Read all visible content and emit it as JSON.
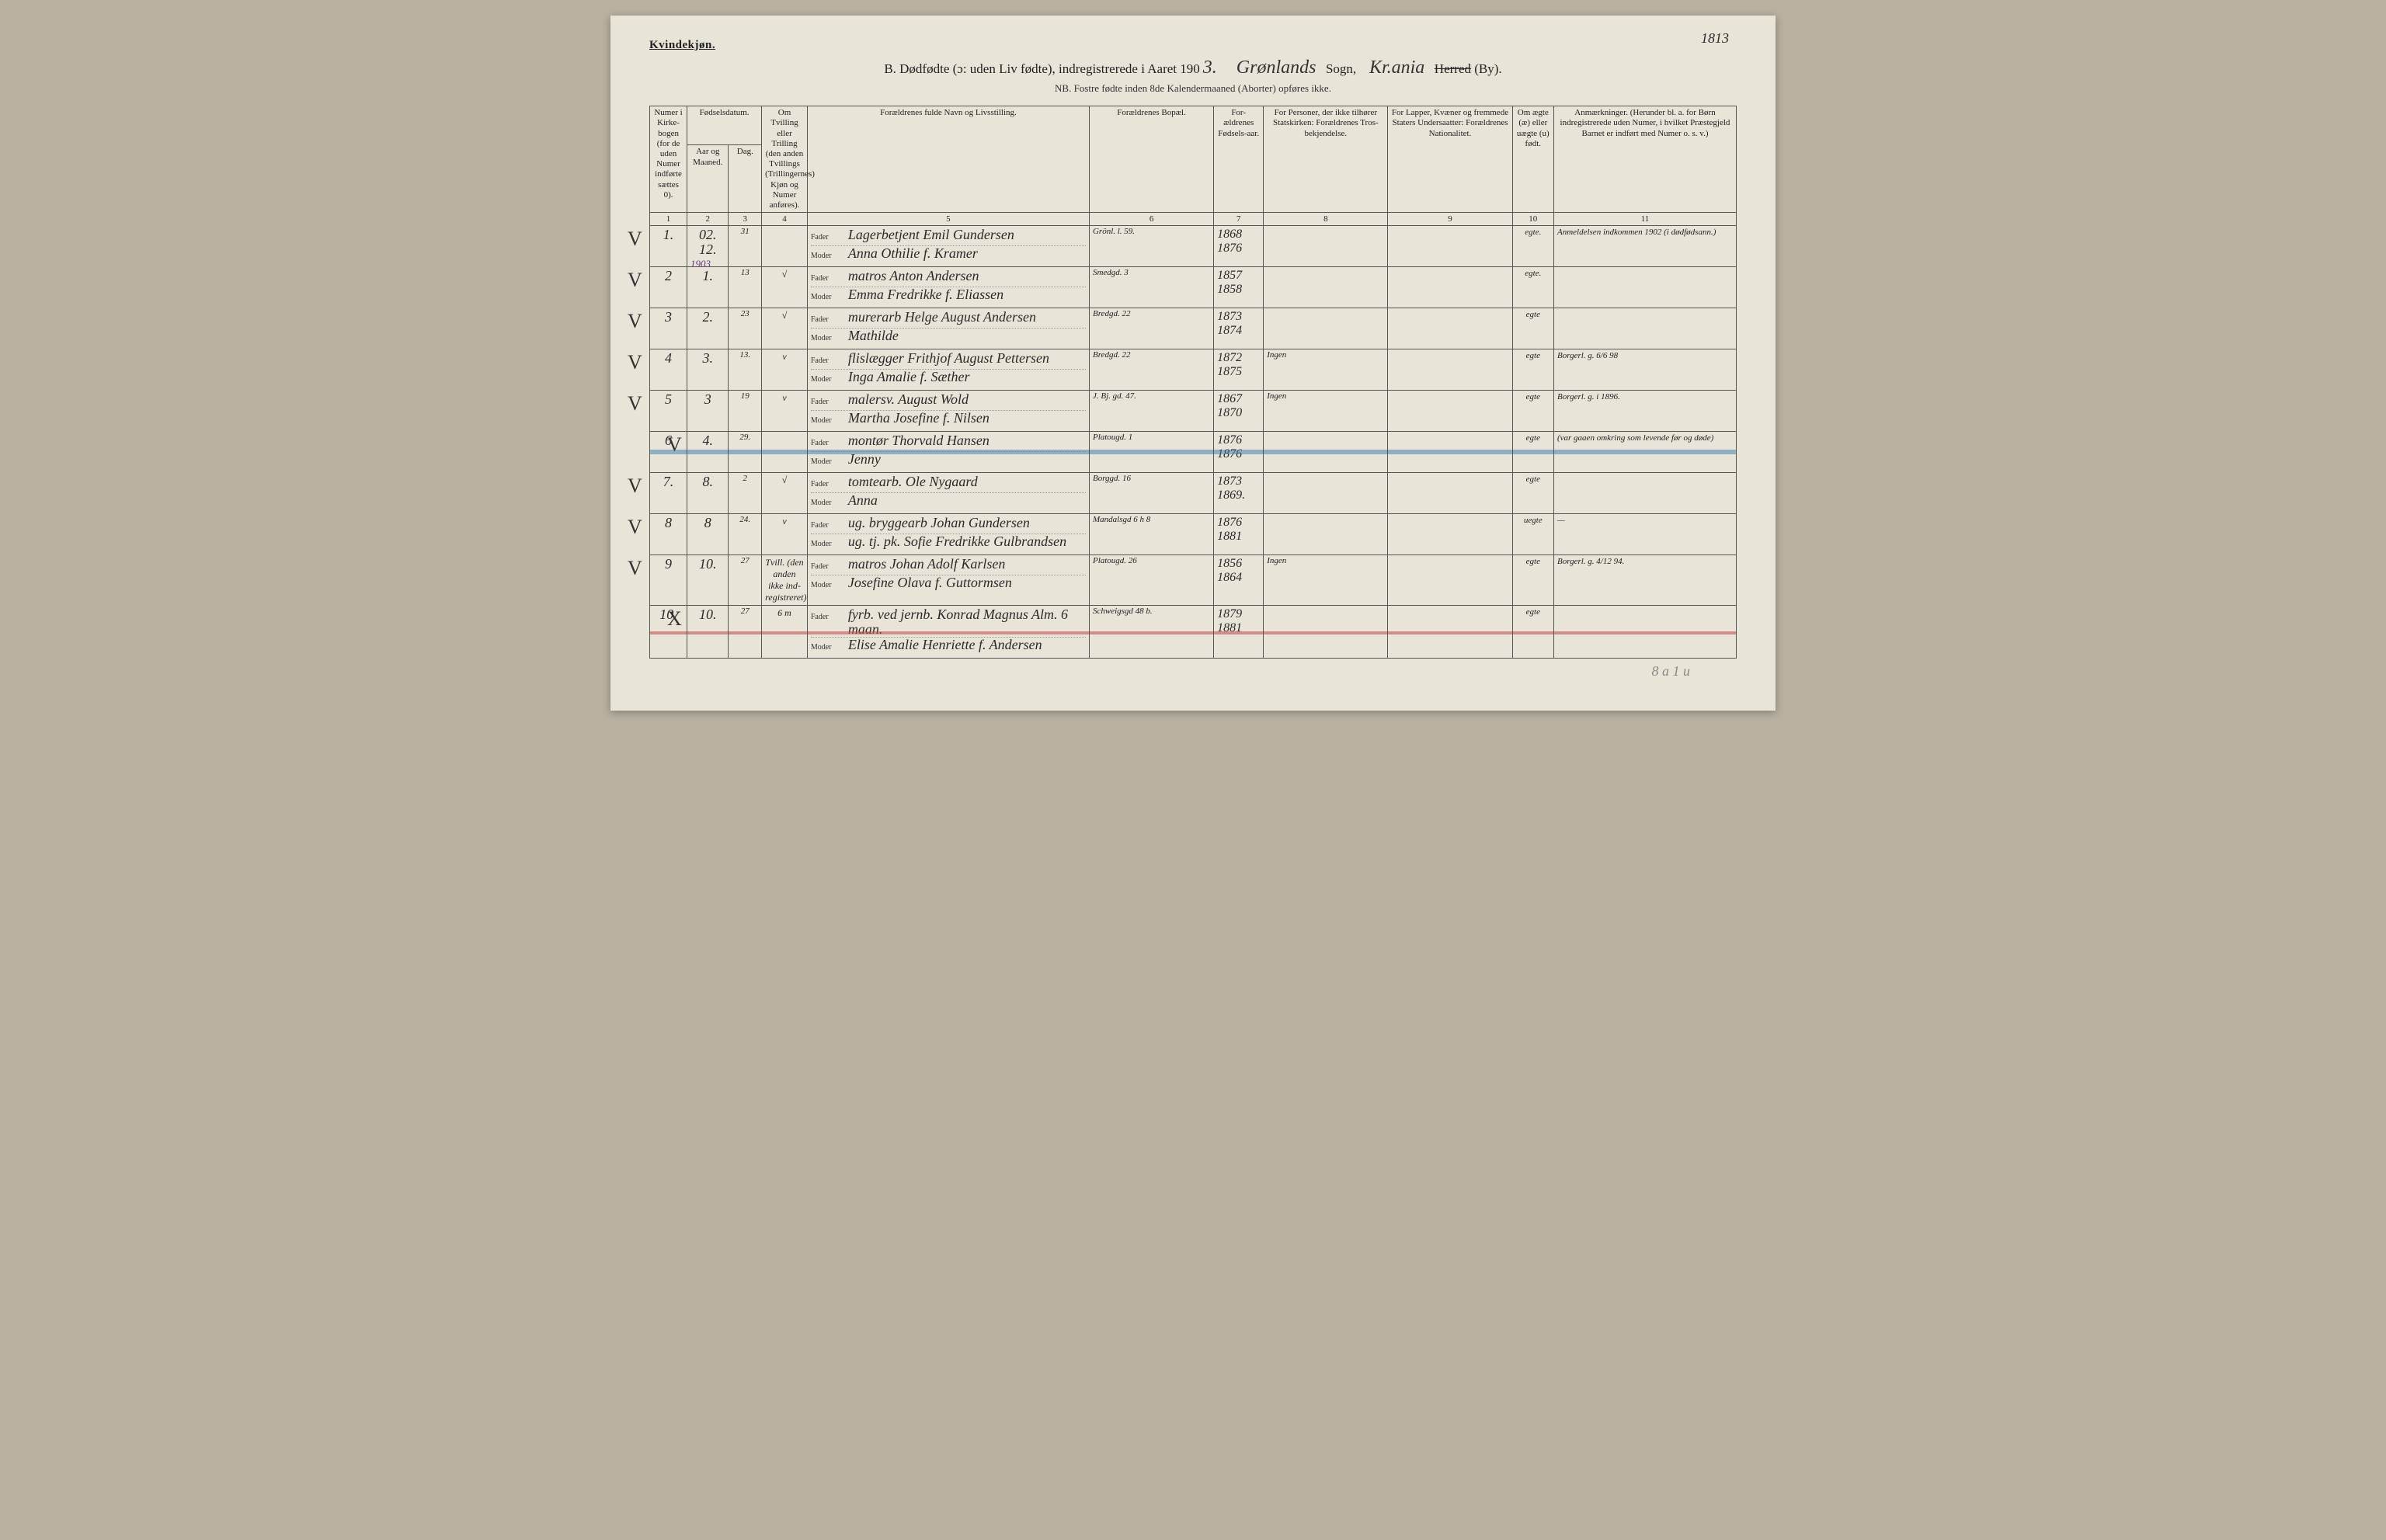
{
  "pageNumber": "1813",
  "genderLabel": "Kvindekjøn.",
  "titlePrefix": "B.  Dødfødte (ɔ: uden Liv fødte), indregistrerede i Aaret 190",
  "titleYearHand": "3.",
  "parishHand": "Grønlands",
  "parishLabel": "Sogn,",
  "districtHand": "Kr.ania",
  "districtStrike": "Herred",
  "districtSuffix": "(By).",
  "subtitle": "NB. Fostre fødte inden 8de Kalendermaaned (Aborter) opføres ikke.",
  "columns": {
    "c1": "Numer i Kirke-bogen (for de uden Numer indførte sættes 0).",
    "c2a": "Fødselsdatum.",
    "c2": "Aar og Maaned.",
    "c3": "Dag.",
    "c4": "Om Tvilling eller Trilling (den anden Tvillings (Trillingernes) Kjøn og Numer anføres).",
    "c5": "Forældrenes fulde Navn og Livsstilling.",
    "c6": "Forældrenes Bopæl.",
    "c7": "For-ældrenes Fødsels-aar.",
    "c8": "For Personer, der ikke tilhører Statskirken: Forældrenes Tros-bekjendelse.",
    "c9": "For Lapper, Kvæner og fremmede Staters Undersaatter: Forældrenes Nationalitet.",
    "c10": "Om ægte (æ) eller uægte (u) født.",
    "c11": "Anmærkninger. (Herunder bl. a. for Børn indregistrerede uden Numer, i hvilket Præstegjeld Barnet er indført med Numer o. s. v.)"
  },
  "colNums": [
    "1",
    "2",
    "3",
    "4",
    "5",
    "6",
    "7",
    "8",
    "9",
    "10",
    "11"
  ],
  "parentLabels": {
    "father": "Fader",
    "mother": "Moder"
  },
  "yearNote": "1903",
  "rows": [
    {
      "margin": "V",
      "num": "1.",
      "mon": "02. 12.",
      "day": "31",
      "twin": "",
      "father": "Lagerbetjent Emil Gundersen",
      "mother": "Anna Othilie f. Kramer",
      "addr": "Grönl. l. 59.",
      "yearF": "1868",
      "yearM": "1876",
      "faith": "",
      "nat": "",
      "legit": "egte.",
      "remark": "Anmeldelsen indkommen 1902 (i dødfødsann.)",
      "remarkClass": "hand-purple"
    },
    {
      "margin": "V",
      "num": "2",
      "mon": "1.",
      "day": "13",
      "twin": "√",
      "father": "matros Anton Andersen",
      "mother": "Emma Fredrikke f. Eliassen",
      "addr": "Smedgd. 3",
      "yearF": "1857",
      "yearM": "1858",
      "faith": "",
      "nat": "",
      "legit": "egte.",
      "remark": ""
    },
    {
      "margin": "V",
      "num": "3",
      "mon": "2.",
      "day": "23",
      "twin": "√",
      "father": "murerarb Helge August Andersen",
      "mother": "Mathilde",
      "addr": "Bredgd. 22",
      "yearF": "1873",
      "yearM": "1874",
      "faith": "",
      "nat": "",
      "legit": "egte",
      "remark": ""
    },
    {
      "margin": "V",
      "num": "4",
      "mon": "3.",
      "day": "13.",
      "twin": "v",
      "father": "flislægger Frithjof August Pettersen",
      "mother": "Inga Amalie f. Sæther",
      "addr": "Bredgd. 22",
      "yearF": "1872",
      "yearM": "1875",
      "faith": "Ingen",
      "nat": "",
      "legit": "egte",
      "remark": "Borgerl. g. 6/6 98"
    },
    {
      "margin": "V",
      "num": "5",
      "mon": "3",
      "day": "19",
      "twin": "v",
      "father": "malersv. August Wold",
      "mother": "Martha Josefine f. Nilsen",
      "addr": "J. Bj. gd. 47.",
      "yearF": "1867",
      "yearM": "1870",
      "faith": "Ingen",
      "nat": "",
      "legit": "egte",
      "remark": "Borgerl. g. i 1896."
    },
    {
      "margin": "V",
      "num": "6",
      "mon": "4.",
      "day": "29.",
      "twin": "",
      "father": "montør Thorvald Hansen",
      "mother": "Jenny",
      "addr": "Platougd. 1",
      "yearF": "1876",
      "yearM": "1876",
      "faith": "",
      "nat": "",
      "legit": "egte",
      "remark": "(var gaaen omkring som levende før og døde)",
      "strike": "blue"
    },
    {
      "margin": "V",
      "num": "7.",
      "mon": "8.",
      "day": "2",
      "twin": "√",
      "father": "tomtearb. Ole Nygaard",
      "mother": "Anna",
      "addr": "Borggd. 16",
      "yearF": "1873",
      "yearM": "1869.",
      "faith": "",
      "nat": "",
      "legit": "egte",
      "remark": ""
    },
    {
      "margin": "V",
      "num": "8",
      "mon": "8",
      "day": "24.",
      "twin": "v",
      "father": "ug. bryggearb Johan Gundersen",
      "mother": "ug. tj. pk. Sofie Fredrikke Gulbrandsen",
      "addr": "Mandalsgd 6 h 8",
      "yearF": "1876",
      "yearM": "1881",
      "faith": "",
      "nat": "",
      "legit": "uegte",
      "remark": "—",
      "remarkClass": "hand-blue"
    },
    {
      "margin": "V",
      "num": "9",
      "mon": "10.",
      "day": "27",
      "twin": "Tvill. (den anden ikke ind-registreret)",
      "father": "matros Johan Adolf Karlsen",
      "mother": "Josefine Olava f. Guttormsen",
      "addr": "Platougd. 26",
      "yearF": "1856",
      "yearM": "1864",
      "faith": "Ingen",
      "nat": "",
      "legit": "egte",
      "remark": "Borgerl. g. 4/12 94."
    },
    {
      "margin": "X",
      "num": "10.",
      "mon": "10.",
      "day": "27",
      "twin": "6 m",
      "father": "fyrb. ved jernb. Konrad Magnus Alm.  6 maan.",
      "mother": "Elise Amalie Henriette f. Andersen",
      "addr": "Schweigsgd 48 b.",
      "yearF": "1879",
      "yearM": "1881",
      "faith": "",
      "nat": "",
      "legit": "egte",
      "remark": "",
      "strike": "red"
    }
  ],
  "footerNote": "8 a 1 u"
}
